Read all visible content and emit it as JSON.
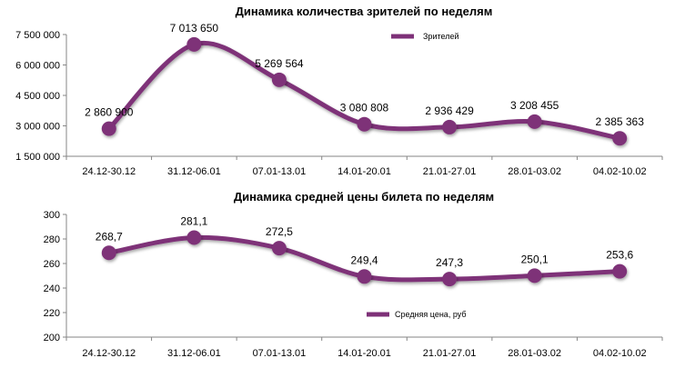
{
  "chart_data": [
    {
      "type": "line",
      "title": "Динамика количества зрителей по неделям",
      "categories": [
        "24.12-30.12",
        "31.12-06.01",
        "07.01-13.01",
        "14.01-20.01",
        "21.01-27.01",
        "28.01-03.02",
        "04.02-10.02"
      ],
      "series": [
        {
          "name": "Зрителей",
          "values": [
            2860900,
            7013650,
            5269564,
            3080808,
            2936429,
            3208455,
            2385363
          ]
        }
      ],
      "data_labels": [
        "2 860 900",
        "7 013 650",
        "5 269 564",
        "3 080 808",
        "2 936 429",
        "3 208 455",
        "2 385 363"
      ],
      "y_ticks": [
        "1 500 000",
        "3 000 000",
        "4 500 000",
        "6 000 000",
        "7 500 000"
      ],
      "ylim": [
        1500000,
        7500000
      ],
      "smooth": true,
      "grid": false,
      "legend_position": "top-right",
      "color": "#7e3178"
    },
    {
      "type": "line",
      "title": "Динамика средней цены билета по неделям",
      "categories": [
        "24.12-30.12",
        "31.12-06.01",
        "07.01-13.01",
        "14.01-20.01",
        "21.01-27.01",
        "28.01-03.02",
        "04.02-10.02"
      ],
      "series": [
        {
          "name": "Средняя цена, руб",
          "values": [
            268.7,
            281.1,
            272.5,
            249.4,
            247.3,
            250.1,
            253.6
          ]
        }
      ],
      "data_labels": [
        "268,7",
        "281,1",
        "272,5",
        "249,4",
        "247,3",
        "250,1",
        "253,6"
      ],
      "y_ticks": [
        "200",
        "220",
        "240",
        "260",
        "280",
        "300"
      ],
      "ylim": [
        200,
        300
      ],
      "smooth": true,
      "grid": false,
      "legend_position": "bottom-right",
      "color": "#7e3178"
    }
  ]
}
